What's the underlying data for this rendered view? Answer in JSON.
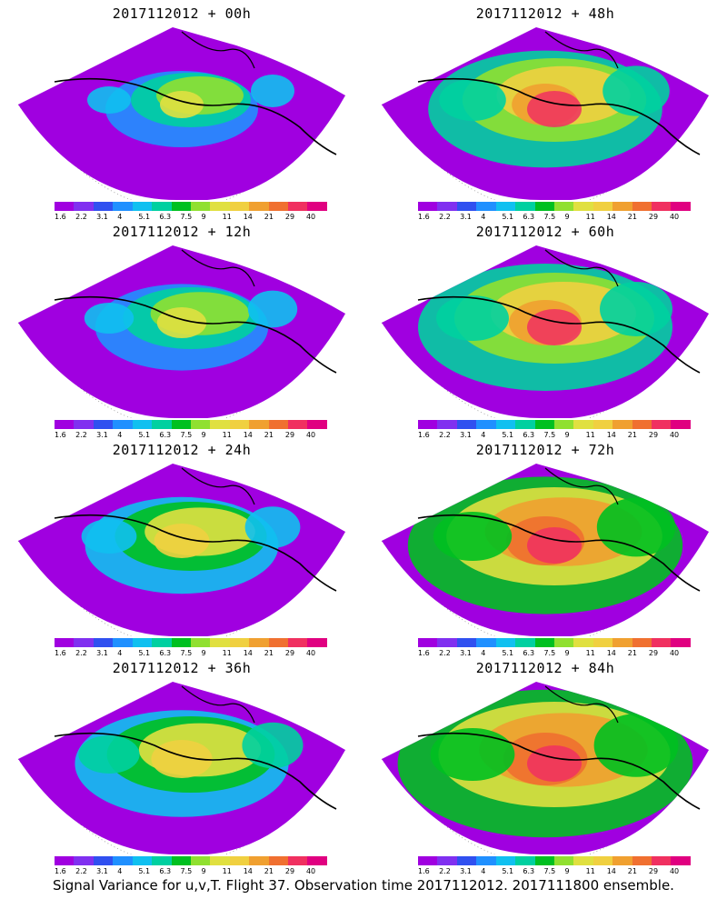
{
  "panels": [
    {
      "title": "2017112012 + 00h",
      "level": 0
    },
    {
      "title": "2017112012 + 48h",
      "level": 4
    },
    {
      "title": "2017112012 + 12h",
      "level": 1
    },
    {
      "title": "2017112012 + 60h",
      "level": 5
    },
    {
      "title": "2017112012 + 24h",
      "level": 2
    },
    {
      "title": "2017112012 + 72h",
      "level": 6
    },
    {
      "title": "2017112012 + 36h",
      "level": 3
    },
    {
      "title": "2017112012 + 84h",
      "level": 7
    }
  ],
  "colorbar": {
    "colors": [
      "#a000e0",
      "#8030f0",
      "#3050f0",
      "#2090ff",
      "#10c0f0",
      "#00d0a0",
      "#00c020",
      "#90e030",
      "#e0e040",
      "#f0d040",
      "#f0a030",
      "#f07030",
      "#f03060",
      "#e00080"
    ],
    "ticks": [
      "1.6",
      "2.2",
      "3.1",
      "4",
      "5.1",
      "6.3",
      "7.5",
      "9",
      "11",
      "14",
      "21",
      "29",
      "40"
    ]
  },
  "footer": "Signal Variance for u,v,T. Flight 37. Observation time 2017112012. 2017111800 ensemble."
}
